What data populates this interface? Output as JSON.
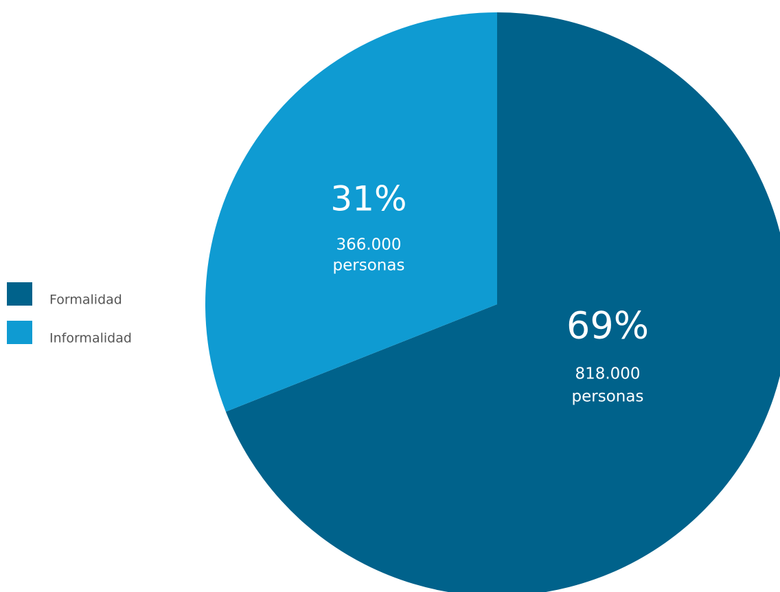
{
  "chart_data": {
    "type": "pie",
    "categories": [
      "Formalidad",
      "Informalidad"
    ],
    "values": [
      69,
      31
    ],
    "value_labels": [
      "69%",
      "31%"
    ],
    "value_sublabels": [
      [
        "818.000",
        "personas"
      ],
      [
        "366.000",
        "personas"
      ]
    ],
    "colors": [
      "#00628b",
      "#0f9bd2"
    ],
    "legend": "left"
  }
}
